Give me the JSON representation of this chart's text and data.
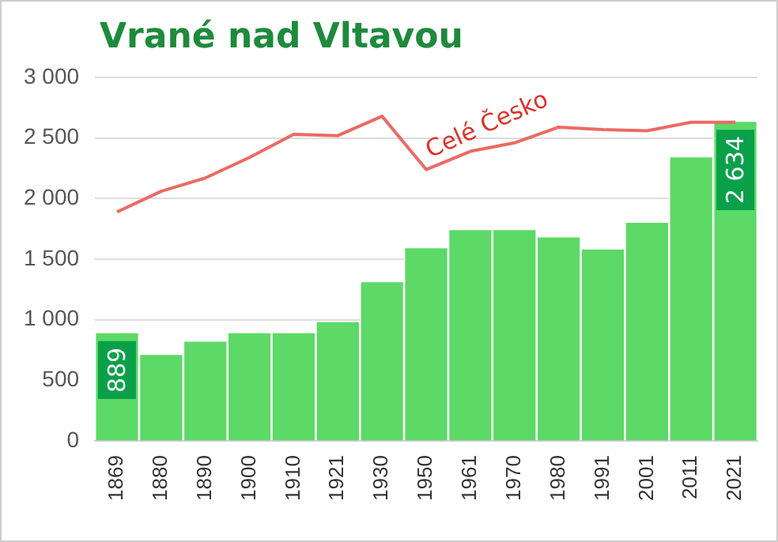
{
  "chart_data": {
    "type": "bar",
    "title": "Vrané nad Vltavou",
    "categories": [
      "1869",
      "1880",
      "1890",
      "1900",
      "1910",
      "1921",
      "1930",
      "1950",
      "1961",
      "1970",
      "1980",
      "1991",
      "2001",
      "2011",
      "2021"
    ],
    "series": [
      {
        "color": "#5cd966",
        "values": [
          889,
          710,
          820,
          890,
          890,
          980,
          1310,
          1590,
          1740,
          1740,
          1680,
          1580,
          1800,
          2340,
          2634
        ],
        "value_labels": [
          "889",
          null,
          null,
          null,
          null,
          null,
          null,
          null,
          null,
          null,
          null,
          null,
          null,
          null,
          "2 634"
        ]
      },
      {
        "type": "line",
        "name": "Celé Česko",
        "color": "#ec6a64",
        "values": [
          1890,
          2060,
          2170,
          2340,
          2530,
          2520,
          2680,
          2240,
          2390,
          2460,
          2590,
          2570,
          2560,
          2630,
          2630
        ]
      }
    ],
    "ylim": [
      0,
      3000
    ],
    "yticks": [
      {
        "value": 0,
        "label": "0"
      },
      {
        "value": 500,
        "label": "500"
      },
      {
        "value": 1000,
        "label": "1 000"
      },
      {
        "value": 1500,
        "label": "1 500"
      },
      {
        "value": 2000,
        "label": "2 000"
      },
      {
        "value": 2500,
        "label": "2 500"
      },
      {
        "value": 3000,
        "label": "3 000"
      }
    ],
    "grid": "y",
    "legend": false,
    "marker": "none"
  }
}
